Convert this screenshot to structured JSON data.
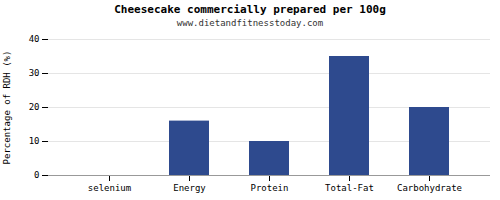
{
  "chart_data": {
    "type": "bar",
    "title": "Cheesecake commercially prepared per 100g",
    "subtitle": "www.dietandfitnesstoday.com",
    "categories": [
      "selenium",
      "Energy",
      "Protein",
      "Total-Fat",
      "Carbohydrate"
    ],
    "values": [
      0,
      16,
      10,
      35,
      20
    ],
    "color": "#2e4a8e",
    "ylabel": "Percentage of RDH (%)",
    "ylim": [
      0,
      40
    ],
    "yticks": [
      0,
      10,
      20,
      30,
      40
    ],
    "grid": true
  }
}
